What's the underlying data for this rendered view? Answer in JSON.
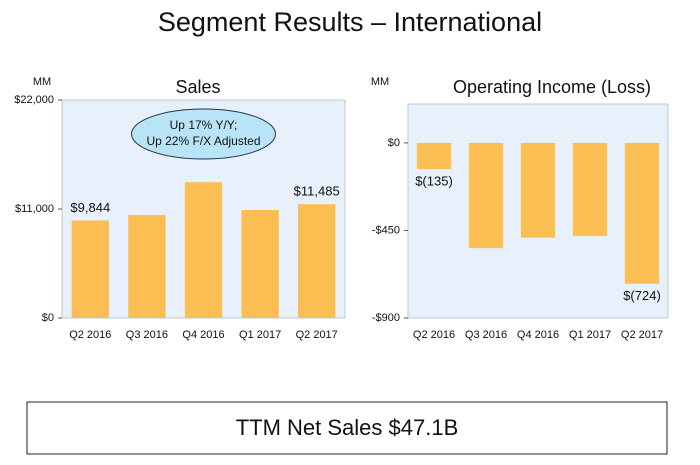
{
  "title": "Segment Results – International",
  "footer": "TTM Net Sales $47.1B",
  "chart_data": [
    {
      "type": "bar",
      "title": "Sales",
      "y_label": "MM",
      "color": "#fbbe52",
      "background": "#e8f1fb",
      "categories": [
        "Q2 2016",
        "Q3 2016",
        "Q4 2016",
        "Q1 2017",
        "Q2 2017"
      ],
      "values": [
        9844,
        10400,
        13700,
        10900,
        11485
      ],
      "value_labels": [
        "$9,844",
        null,
        null,
        null,
        "$11,485"
      ],
      "annotation": [
        "Up 17% Y/Y;",
        "Up 22% F/X Adjusted"
      ],
      "ylim": [
        0,
        22000
      ],
      "yticks": [
        {
          "value": 0,
          "label": "$0"
        },
        {
          "value": 11000,
          "label": "$11,000"
        },
        {
          "value": 22000,
          "label": "$22,000"
        }
      ]
    },
    {
      "type": "bar",
      "title": "Operating Income (Loss)",
      "y_label": "MM",
      "color": "#fbbe52",
      "background": "#e8f1fb",
      "categories": [
        "Q2 2016",
        "Q3 2016",
        "Q4 2016",
        "Q1 2017",
        "Q2 2017"
      ],
      "values": [
        -135,
        -541,
        -487,
        -478,
        -724
      ],
      "value_labels": [
        "$(135)",
        null,
        null,
        null,
        "$(724)"
      ],
      "ylim": [
        -900,
        200
      ],
      "yticks": [
        {
          "value": 0,
          "label": "$0"
        },
        {
          "value": -450,
          "label": "-$450"
        },
        {
          "value": -900,
          "label": "-$900"
        }
      ]
    }
  ]
}
